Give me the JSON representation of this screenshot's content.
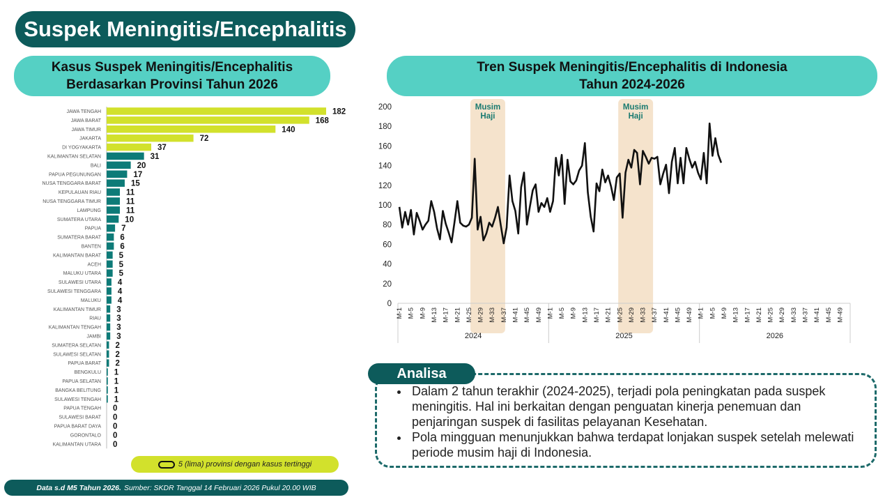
{
  "title": "Suspek Meningitis/Encephalitis",
  "left_panel": {
    "title_line1": "Kasus Suspek Meningitis/Encephalitis",
    "title_line2": "Berdasarkan Provinsi Tahun 2026"
  },
  "right_panel": {
    "title_line1": "Tren Suspek Meningitis/Encephalitis di Indonesia",
    "title_line2": "Tahun 2024-2026"
  },
  "colors": {
    "dark_teal": "#0d5b5b",
    "light_teal": "#55d0c4",
    "bar_top5": "#d2e12c",
    "bar_other": "#0d7b78",
    "musim_haji": "#f5e3cc"
  },
  "chart_data": [
    {
      "type": "bar",
      "orientation": "horizontal",
      "categories": [
        "JAWA TENGAH",
        "JAWA BARAT",
        "JAWA TIMUR",
        "JAKARTA",
        "DI YOGYAKARTA",
        "KALIMANTAN SELATAN",
        "BALI",
        "PAPUA PEGUNUNGAN",
        "NUSA TENGGARA BARAT",
        "KEPULAUAN RIAU",
        "NUSA TENGGARA TIMUR",
        "LAMPUNG",
        "SUMATERA UTARA",
        "PAPUA",
        "SUMATERA BARAT",
        "BANTEN",
        "KALIMANTAN BARAT",
        "ACEH",
        "MALUKU UTARA",
        "SULAWESI UTARA",
        "SULAWESI TENGGARA",
        "MALUKU",
        "KALIMANTAN TIMUR",
        "RIAU",
        "KALIMANTAN TENGAH",
        "JAMBI",
        "SUMATERA SELATAN",
        "SULAWESI SELATAN",
        "PAPUA BARAT",
        "BENGKULU",
        "PAPUA SELATAN",
        "BANGKA BELITUNG",
        "SULAWESI TENGAH",
        "PAPUA TENGAH",
        "SULAWESI BARAT",
        "PAPUA BARAT DAYA",
        "GORONTALO",
        "KALIMANTAN UTARA"
      ],
      "values": [
        182,
        168,
        140,
        72,
        37,
        31,
        20,
        17,
        15,
        11,
        11,
        11,
        10,
        7,
        6,
        6,
        5,
        5,
        5,
        4,
        4,
        4,
        3,
        3,
        3,
        3,
        2,
        2,
        2,
        1,
        1,
        1,
        1,
        0,
        0,
        0,
        0,
        0
      ],
      "highlight_top_n": 5,
      "legend": "5 (lima) provinsi dengan kasus tertinggi"
    },
    {
      "type": "line",
      "years": [
        "2024",
        "2025",
        "2026"
      ],
      "x_tick_labels": [
        "M-1",
        "M-5",
        "M-9",
        "M-13",
        "M-17",
        "M-21",
        "M-25",
        "M-29",
        "M-33",
        "M-37",
        "M-41",
        "M-45",
        "M-49"
      ],
      "ylim": [
        0,
        200
      ],
      "yticks": [
        0,
        20,
        40,
        60,
        80,
        100,
        120,
        140,
        160,
        180,
        200
      ],
      "series": [
        {
          "values": [
            98,
            77,
            93,
            80,
            95,
            70,
            92,
            84,
            75,
            80,
            84,
            104,
            93,
            76,
            65,
            94,
            81,
            72,
            62,
            82,
            104,
            82,
            79,
            78,
            80,
            87,
            147,
            75,
            88,
            64,
            71,
            82,
            78,
            87,
            98,
            79,
            61,
            77,
            130,
            104,
            94,
            71,
            118,
            133,
            80,
            98,
            115,
            121,
            93,
            102,
            98,
            107,
            93,
            104,
            148,
            130,
            151,
            101,
            146,
            124,
            121,
            125,
            135,
            140,
            163,
            113,
            88,
            73,
            122,
            114,
            136,
            123,
            130,
            119,
            105,
            128,
            132,
            87,
            133,
            146,
            138,
            156,
            153,
            121,
            155,
            149,
            142,
            148,
            147,
            149,
            121,
            132,
            141,
            112,
            144,
            158,
            122,
            148,
            122,
            158,
            147,
            138,
            144,
            133,
            126,
            153,
            122,
            183,
            150,
            168,
            151,
            143
          ],
          "color": "#111111"
        }
      ],
      "shaded_periods": [
        {
          "label_line1": "Musim",
          "label_line2": "Haji",
          "year": "2024",
          "from_week": 26,
          "to_week": 37
        },
        {
          "label_line1": "Musim",
          "label_line2": "Haji",
          "year": "2025",
          "from_week": 25,
          "to_week": 36
        }
      ]
    }
  ],
  "analysis": {
    "label": "Analisa",
    "bullets": [
      "Dalam 2 tahun terakhir (2024-2025), terjadi pola peningkatan pada suspek meningitis. Hal ini berkaitan dengan penguatan kinerja penemuan dan penjaringan suspek di fasilitas pelayanan Kesehatan.",
      "Pola mingguan menunjukkan bahwa terdapat lonjakan suspek setelah melewati periode musim haji di Indonesia."
    ]
  },
  "footer": {
    "bold": "Data s.d M5 Tahun 2026.",
    "text": "Sumber: SKDR Tanggal 14 Februari 2026 Pukul 20.00 WIB"
  }
}
